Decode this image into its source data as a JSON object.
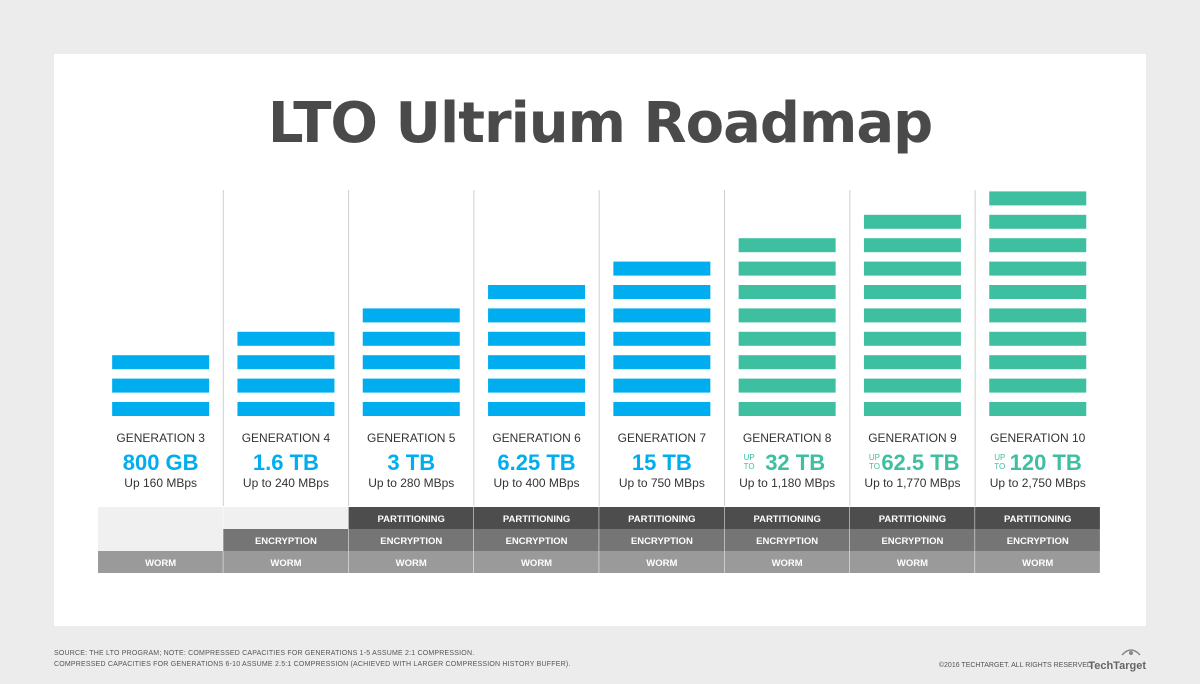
{
  "title": "LTO Ultrium Roadmap",
  "chart_data": {
    "type": "bar",
    "categories": [
      "GENERATION 3",
      "GENERATION 4",
      "GENERATION 5",
      "GENERATION 6",
      "GENERATION 7",
      "GENERATION 8",
      "GENERATION 9",
      "GENERATION 10"
    ],
    "capacity_labels": [
      "800 GB",
      "1.6 TB",
      "3 TB",
      "6.25 TB",
      "15 TB",
      "32 TB",
      "62.5 TB",
      "120 TB"
    ],
    "capacity_prefix": [
      "",
      "",
      "",
      "",
      "",
      "UP TO",
      "UP TO",
      "UP TO"
    ],
    "speed_labels": [
      "Up 160 MBps",
      "Up to 240 MBps",
      "Up to 280 MBps",
      "Up to 400 MBps",
      "Up to 750 MBps",
      "Up to 1,180 MBps",
      "Up to 1,770 MBps",
      "Up to 2,750 MBps"
    ],
    "stripes": [
      3,
      4,
      5,
      6,
      7,
      8,
      9,
      10
    ],
    "colors": {
      "blue": "#00aeef",
      "teal": "#3ebfa0"
    },
    "series_color": [
      "blue",
      "blue",
      "blue",
      "blue",
      "blue",
      "teal",
      "teal",
      "teal"
    ],
    "features": {
      "partitioning": {
        "label": "PARTITIONING",
        "available": [
          false,
          false,
          true,
          true,
          true,
          true,
          true,
          true
        ]
      },
      "encryption": {
        "label": "ENCRYPTION",
        "available": [
          false,
          true,
          true,
          true,
          true,
          true,
          true,
          true
        ]
      },
      "worm": {
        "label": "WORM",
        "available": [
          true,
          true,
          true,
          true,
          true,
          true,
          true,
          true
        ]
      }
    }
  },
  "footer": {
    "line1": "Source: The LTO Program; Note: Compressed capacities for generations 1-5 assume 2:1 compression.",
    "line2": "Compressed capacities for generations 6-10 assume 2.5:1 compression (achieved with larger compression history buffer).",
    "copyright": "©2016 TechTarget. All Rights Reserved",
    "brand": "TechTarget"
  }
}
